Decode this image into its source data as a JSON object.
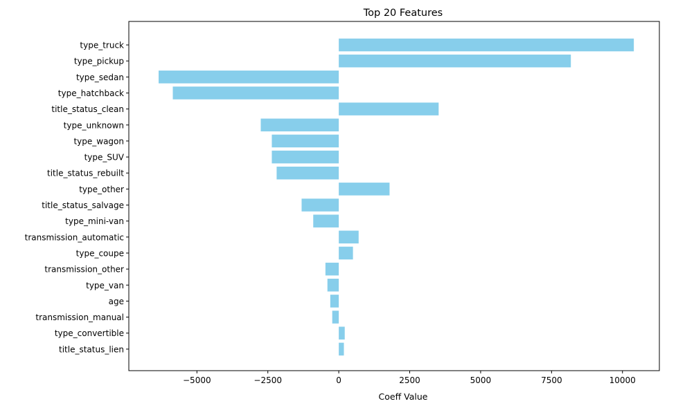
{
  "chart_data": {
    "type": "bar",
    "orientation": "horizontal",
    "title": "Top 20 Features",
    "xlabel": "Coeff Value",
    "ylabel": "",
    "xlim": [
      -7400,
      11300
    ],
    "xticks": [
      -5000,
      -2500,
      0,
      2500,
      5000,
      7500,
      10000
    ],
    "xtick_labels": [
      "−5000",
      "−2500",
      "0",
      "2500",
      "5000",
      "7500",
      "10000"
    ],
    "grid": false,
    "bar_color": "#87CEEB",
    "categories": [
      "type_truck",
      "type_pickup",
      "type_sedan",
      "type_hatchback",
      "title_status_clean",
      "type_unknown",
      "type_wagon",
      "type_SUV",
      "title_status_rebuilt",
      "type_other",
      "title_status_salvage",
      "type_mini-van",
      "transmission_automatic",
      "type_coupe",
      "transmission_other",
      "type_van",
      "age",
      "transmission_manual",
      "type_convertible",
      "title_status_lien"
    ],
    "values": [
      10400,
      8180,
      -6350,
      -5850,
      3520,
      -2750,
      -2360,
      -2360,
      -2190,
      1790,
      -1310,
      -900,
      700,
      500,
      -470,
      -400,
      -300,
      -230,
      210,
      180
    ]
  }
}
